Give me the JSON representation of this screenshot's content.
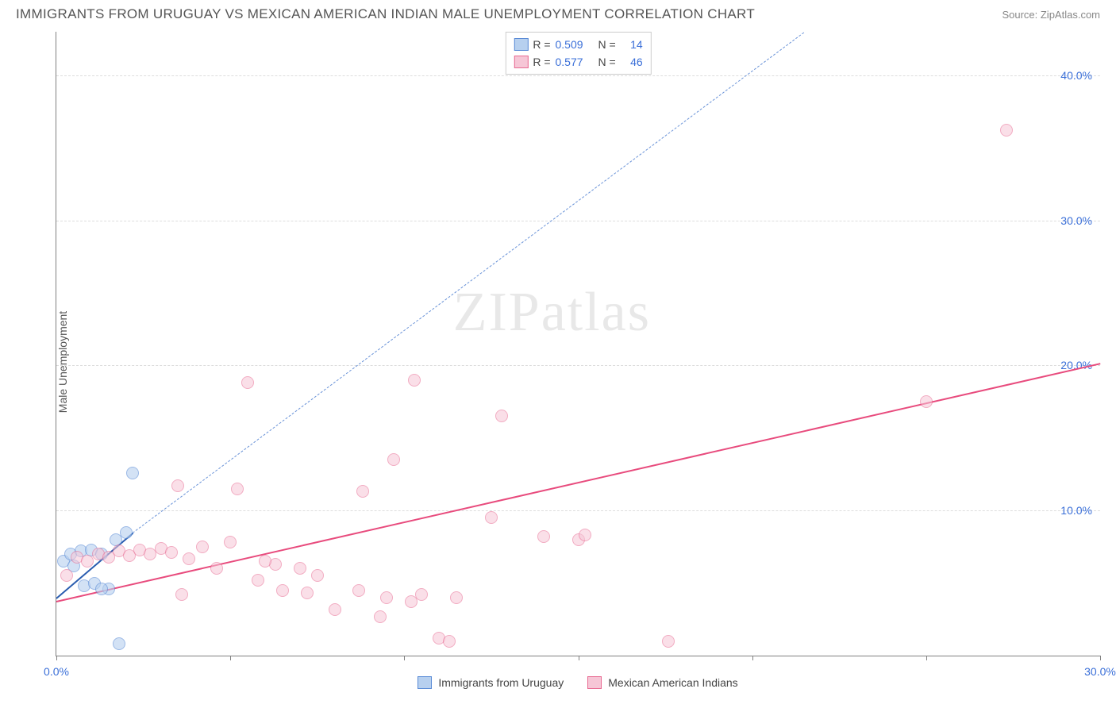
{
  "title": "IMMIGRANTS FROM URUGUAY VS MEXICAN AMERICAN INDIAN MALE UNEMPLOYMENT CORRELATION CHART",
  "source": "Source: ZipAtlas.com",
  "ylabel": "Male Unemployment",
  "watermark": "ZIPatlas",
  "chart": {
    "type": "scatter",
    "background_color": "#ffffff",
    "grid_color": "#dddddd",
    "axis_color": "#808080",
    "xlim": [
      0,
      30
    ],
    "ylim": [
      0,
      43
    ],
    "xticks": [
      0,
      5,
      10,
      15,
      20,
      25,
      30
    ],
    "xtick_labels": {
      "0": "0.0%",
      "30": "30.0%"
    },
    "yticks": [
      10,
      20,
      30,
      40
    ],
    "ytick_labels": {
      "10": "10.0%",
      "20": "20.0%",
      "30": "30.0%",
      "40": "40.0%"
    },
    "xtick_label_color": "#3a6fd8",
    "ytick_label_color": "#3a6fd8",
    "label_color": "#555555",
    "marker_radius": 8,
    "marker_stroke_width": 1,
    "series": [
      {
        "name": "Immigrants from Uruguay",
        "fill_color": "#b7d0ef",
        "stroke_color": "#5a8bd6",
        "fill_opacity": 0.6,
        "r_value": "0.509",
        "n_value": "14",
        "trend": {
          "x1": 0,
          "y1": 4.0,
          "x2": 2.2,
          "y2": 8.5,
          "solid_color": "#2a5db0",
          "width": 2,
          "dash_x2": 21.5,
          "dash_y2": 43,
          "dash_color": "#6a93d8"
        },
        "points": [
          {
            "x": 0.2,
            "y": 6.5
          },
          {
            "x": 0.4,
            "y": 7.0
          },
          {
            "x": 0.5,
            "y": 6.2
          },
          {
            "x": 0.7,
            "y": 7.2
          },
          {
            "x": 0.8,
            "y": 4.8
          },
          {
            "x": 1.0,
            "y": 7.3
          },
          {
            "x": 1.1,
            "y": 5.0
          },
          {
            "x": 1.3,
            "y": 7.0
          },
          {
            "x": 1.5,
            "y": 4.6
          },
          {
            "x": 1.7,
            "y": 8.0
          },
          {
            "x": 2.0,
            "y": 8.5
          },
          {
            "x": 2.2,
            "y": 12.6
          },
          {
            "x": 1.3,
            "y": 4.6
          },
          {
            "x": 1.8,
            "y": 0.8
          }
        ]
      },
      {
        "name": "Mexican American Indians",
        "fill_color": "#f6c6d6",
        "stroke_color": "#e86a92",
        "fill_opacity": 0.55,
        "r_value": "0.577",
        "n_value": "46",
        "trend": {
          "x1": 0,
          "y1": 3.8,
          "x2": 30,
          "y2": 20.2,
          "solid_color": "#e84b7d",
          "width": 2
        },
        "points": [
          {
            "x": 0.3,
            "y": 5.5
          },
          {
            "x": 0.6,
            "y": 6.8
          },
          {
            "x": 0.9,
            "y": 6.5
          },
          {
            "x": 1.2,
            "y": 7.0
          },
          {
            "x": 1.5,
            "y": 6.8
          },
          {
            "x": 1.8,
            "y": 7.2
          },
          {
            "x": 2.1,
            "y": 6.9
          },
          {
            "x": 2.4,
            "y": 7.3
          },
          {
            "x": 2.7,
            "y": 7.0
          },
          {
            "x": 3.0,
            "y": 7.4
          },
          {
            "x": 3.3,
            "y": 7.1
          },
          {
            "x": 3.5,
            "y": 11.7
          },
          {
            "x": 3.6,
            "y": 4.2
          },
          {
            "x": 4.2,
            "y": 7.5
          },
          {
            "x": 5.0,
            "y": 7.8
          },
          {
            "x": 5.2,
            "y": 11.5
          },
          {
            "x": 5.5,
            "y": 18.8
          },
          {
            "x": 5.8,
            "y": 5.2
          },
          {
            "x": 6.3,
            "y": 6.3
          },
          {
            "x": 6.5,
            "y": 4.5
          },
          {
            "x": 7.0,
            "y": 6.0
          },
          {
            "x": 7.2,
            "y": 4.3
          },
          {
            "x": 7.5,
            "y": 5.5
          },
          {
            "x": 8.0,
            "y": 3.2
          },
          {
            "x": 8.7,
            "y": 4.5
          },
          {
            "x": 8.8,
            "y": 11.3
          },
          {
            "x": 9.3,
            "y": 2.7
          },
          {
            "x": 9.5,
            "y": 4.0
          },
          {
            "x": 9.7,
            "y": 13.5
          },
          {
            "x": 10.2,
            "y": 3.7
          },
          {
            "x": 10.3,
            "y": 19.0
          },
          {
            "x": 10.5,
            "y": 4.2
          },
          {
            "x": 11.0,
            "y": 1.2
          },
          {
            "x": 11.3,
            "y": 1.0
          },
          {
            "x": 11.5,
            "y": 4.0
          },
          {
            "x": 12.5,
            "y": 9.5
          },
          {
            "x": 12.8,
            "y": 16.5
          },
          {
            "x": 14.0,
            "y": 8.2
          },
          {
            "x": 15.0,
            "y": 8.0
          },
          {
            "x": 15.2,
            "y": 8.3
          },
          {
            "x": 17.6,
            "y": 1.0
          },
          {
            "x": 25.0,
            "y": 17.5
          },
          {
            "x": 27.3,
            "y": 36.2
          },
          {
            "x": 4.6,
            "y": 6.0
          },
          {
            "x": 6.0,
            "y": 6.5
          },
          {
            "x": 3.8,
            "y": 6.7
          }
        ]
      }
    ],
    "stats_legend": {
      "label_R": "R =",
      "label_N": "N =",
      "value_color": "#3a6fd8",
      "label_color": "#444444"
    }
  },
  "bottom_legend": {
    "items": [
      {
        "label": "Immigrants from Uruguay",
        "fill": "#b7d0ef",
        "stroke": "#5a8bd6"
      },
      {
        "label": "Mexican American Indians",
        "fill": "#f6c6d6",
        "stroke": "#e86a92"
      }
    ]
  }
}
